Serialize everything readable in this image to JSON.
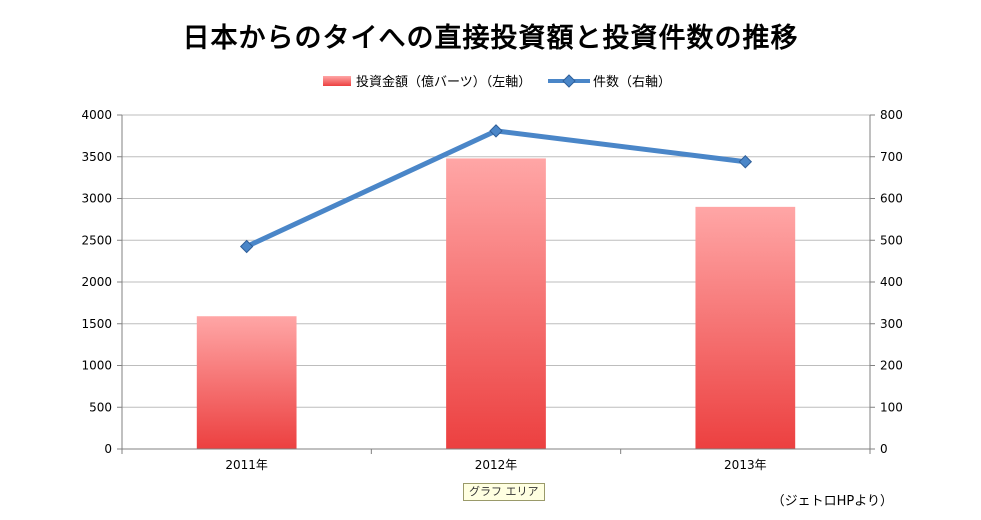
{
  "chart_data": {
    "type": "bar",
    "title": "日本からのタイへの直接投資額と投資件数の推移",
    "categories": [
      "2011年",
      "2012年",
      "2013年"
    ],
    "series": [
      {
        "name": "投資金額（億バーツ）（左軸）",
        "type": "bar",
        "axis": "left",
        "values": [
          1590,
          3480,
          2900
        ],
        "color": "#ee4444"
      },
      {
        "name": "件数（右軸）",
        "type": "line",
        "axis": "right",
        "values": [
          485,
          762,
          688
        ],
        "color": "#4a86c8"
      }
    ],
    "ylim_left": [
      0,
      4000
    ],
    "ylim_right": [
      0,
      800
    ],
    "yticks_left": [
      "0",
      "500",
      "1000",
      "1500",
      "2000",
      "2500",
      "3000",
      "3500",
      "4000"
    ],
    "yticks_right": [
      "0",
      "100",
      "200",
      "300",
      "400",
      "500",
      "600",
      "700",
      "800"
    ],
    "grid": true,
    "legend_position": "top"
  },
  "tooltip": "グラフ エリア",
  "source": "（ジェトロHPより）"
}
